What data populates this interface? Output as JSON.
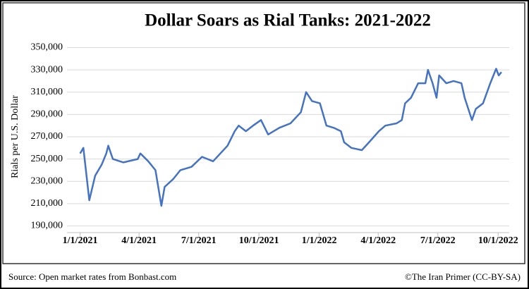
{
  "chart_data": {
    "type": "line",
    "title": "Dollar Soars as Rial Tanks: 2021-2022",
    "ylabel": "Rials per U.S. Dollar",
    "source": "Source:  Open market rates from Bonbast.com",
    "credit": "©The Iran Primer (CC-BY-SA)",
    "color": "#4472c4",
    "grid": true,
    "xlim": [
      "2020-12-12",
      "2022-10-18"
    ],
    "xticks": [
      {
        "value": "2021-01-01",
        "label": "1/1/2021"
      },
      {
        "value": "2021-04-01",
        "label": "4/1/2021"
      },
      {
        "value": "2021-07-01",
        "label": "7/1/2021"
      },
      {
        "value": "2021-10-01",
        "label": "10/1/2021"
      },
      {
        "value": "2022-01-01",
        "label": "1/1/2022"
      },
      {
        "value": "2022-04-01",
        "label": "4/1/2022"
      },
      {
        "value": "2022-07-01",
        "label": "7/1/2022"
      },
      {
        "value": "2022-10-01",
        "label": "10/1/2022"
      }
    ],
    "ylim": [
      184000,
      356000
    ],
    "yticks": [
      {
        "value": 190000,
        "label": "190,000"
      },
      {
        "value": 210000,
        "label": "210,000"
      },
      {
        "value": 230000,
        "label": "230,000"
      },
      {
        "value": 250000,
        "label": "250,000"
      },
      {
        "value": 270000,
        "label": "270,000"
      },
      {
        "value": 290000,
        "label": "290,000"
      },
      {
        "value": 310000,
        "label": "310,000"
      },
      {
        "value": 330000,
        "label": "330,000"
      },
      {
        "value": 350000,
        "label": "350,000"
      }
    ],
    "x": [
      "2021-01-01",
      "2021-01-06",
      "2021-01-15",
      "2021-01-24",
      "2021-02-03",
      "2021-02-10",
      "2021-02-13",
      "2021-02-20",
      "2021-03-08",
      "2021-03-30",
      "2021-04-03",
      "2021-04-15",
      "2021-04-26",
      "2021-05-05",
      "2021-05-10",
      "2021-05-23",
      "2021-06-03",
      "2021-06-20",
      "2021-07-06",
      "2021-07-23",
      "2021-08-03",
      "2021-08-14",
      "2021-08-25",
      "2021-08-31",
      "2021-09-11",
      "2021-09-22",
      "2021-10-04",
      "2021-10-15",
      "2021-11-01",
      "2021-11-18",
      "2021-12-04",
      "2021-12-12",
      "2021-12-21",
      "2022-01-02",
      "2022-01-12",
      "2022-01-23",
      "2022-02-03",
      "2022-02-08",
      "2022-02-19",
      "2022-03-07",
      "2022-03-18",
      "2022-04-02",
      "2022-04-12",
      "2022-04-29",
      "2022-05-07",
      "2022-05-12",
      "2022-05-21",
      "2022-06-01",
      "2022-06-12",
      "2022-06-16",
      "2022-06-23",
      "2022-06-29",
      "2022-07-03",
      "2022-07-14",
      "2022-07-25",
      "2022-08-06",
      "2022-08-11",
      "2022-08-22",
      "2022-08-28",
      "2022-09-08",
      "2022-09-19",
      "2022-09-28",
      "2022-10-02",
      "2022-10-06"
    ],
    "values": [
      255000,
      260000,
      213000,
      235000,
      245000,
      255000,
      262000,
      250000,
      247000,
      250000,
      255000,
      248000,
      240000,
      208000,
      225000,
      232000,
      240000,
      243000,
      252000,
      248000,
      255000,
      262000,
      275000,
      280000,
      275000,
      280000,
      285000,
      272000,
      278000,
      282000,
      292000,
      310000,
      302000,
      300000,
      280000,
      278000,
      275000,
      265000,
      260000,
      258000,
      265000,
      275000,
      280000,
      282000,
      285000,
      300000,
      305000,
      318000,
      318000,
      330000,
      318000,
      305000,
      325000,
      318000,
      320000,
      318000,
      305000,
      285000,
      295000,
      300000,
      318000,
      331000,
      325000,
      328000
    ]
  }
}
